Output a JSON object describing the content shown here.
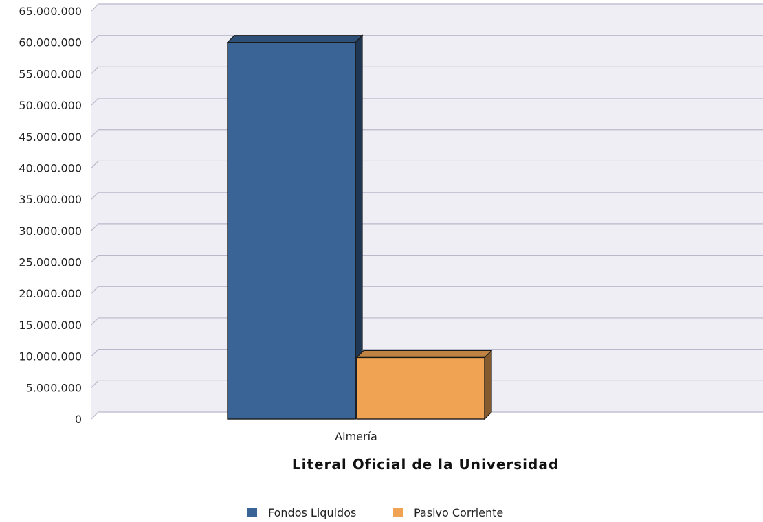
{
  "chart_data": {
    "type": "bar",
    "categories": [
      "Almería"
    ],
    "series": [
      {
        "name": "Fondos Liquidos",
        "values": [
          60000000
        ],
        "color": "#3a6496"
      },
      {
        "name": "Pasivo Corriente",
        "values": [
          9800000
        ],
        "color": "#f0a453"
      }
    ],
    "title": "",
    "xlabel": "Literal Oficial de la Universidad",
    "ylabel": "",
    "ylim": [
      0,
      65000000
    ],
    "y_ticks": [
      "0",
      "5.000.000",
      "10.000.000",
      "15.000.000",
      "20.000.000",
      "25.000.000",
      "30.000.000",
      "35.000.000",
      "40.000.000",
      "45.000.000",
      "50.000.000",
      "55.000.000",
      "60.000.000",
      "65.000.000"
    ],
    "grid": true,
    "legend_position": "bottom",
    "style": "3d",
    "plot_background": "#eeeef4"
  }
}
